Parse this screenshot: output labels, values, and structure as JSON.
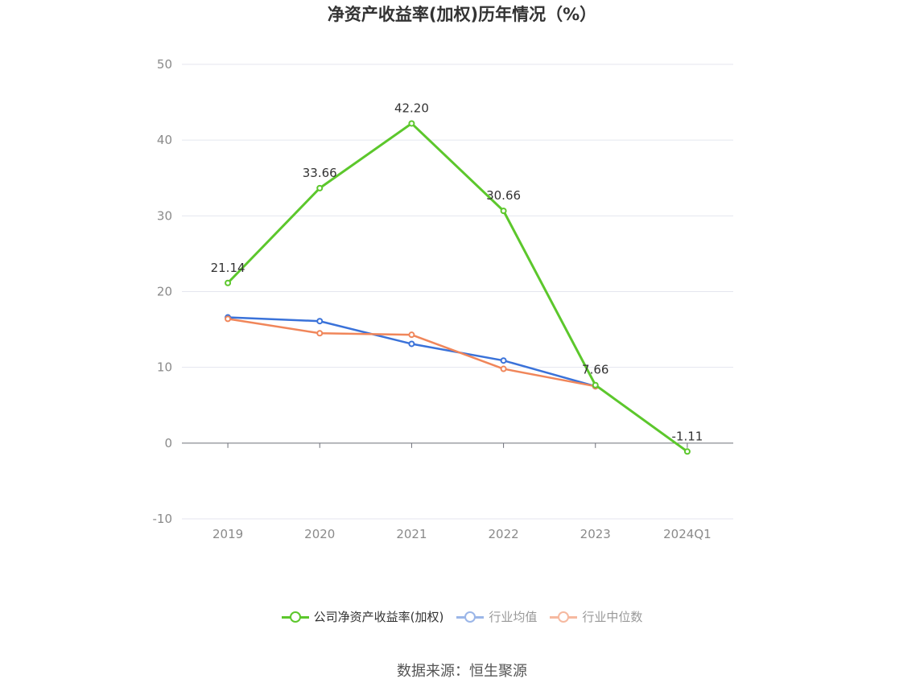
{
  "chart_data": {
    "type": "line",
    "title": "净资产收益率(加权)历年情况（%）",
    "categories": [
      "2019",
      "2020",
      "2021",
      "2022",
      "2023",
      "2024Q1"
    ],
    "ylim": [
      -10,
      50
    ],
    "yticks": [
      -10,
      0,
      10,
      20,
      30,
      40,
      50
    ],
    "grid": true,
    "legend_position": "bottom",
    "series": [
      {
        "name": "公司净资产收益率(加权)",
        "color": "#5cc72c",
        "values": [
          21.14,
          33.66,
          42.2,
          30.66,
          7.66,
          -1.11
        ],
        "labels": [
          "21.14",
          "33.66",
          "42.20",
          "30.66",
          "7.66",
          "-1.11"
        ]
      },
      {
        "name": "行业均值",
        "color": "#3a72d9",
        "legend_color": "#9bb6e8",
        "values": [
          16.6,
          16.1,
          13.1,
          10.9,
          7.5,
          null
        ]
      },
      {
        "name": "行业中位数",
        "color": "#f0865a",
        "legend_color": "#f6b9a0",
        "values": [
          16.4,
          14.5,
          14.3,
          9.8,
          7.5,
          null
        ]
      }
    ]
  },
  "footer": {
    "source": "数据来源：恒生聚源"
  }
}
